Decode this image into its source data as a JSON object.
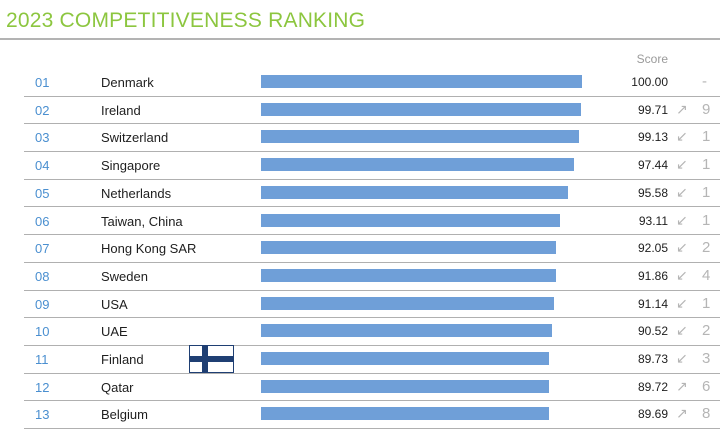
{
  "header": {
    "title": "2023 COMPETITIVENESS RANKING",
    "score_label": "Score"
  },
  "chart_data": {
    "type": "bar",
    "title": "2023 COMPETITIVENESS RANKING",
    "xlabel": "",
    "ylabel": "",
    "value_label": "Score",
    "xlim": [
      0,
      100
    ],
    "grid": false,
    "categories": [
      "Denmark",
      "Ireland",
      "Switzerland",
      "Singapore",
      "Netherlands",
      "Taiwan, China",
      "Hong Kong SAR",
      "Sweden",
      "USA",
      "UAE",
      "Finland",
      "Qatar",
      "Belgium"
    ],
    "values": [
      100.0,
      99.71,
      99.13,
      97.44,
      95.58,
      93.11,
      92.05,
      91.86,
      91.14,
      90.52,
      89.73,
      89.72,
      89.69
    ],
    "rows": [
      {
        "rank": "01",
        "country": "Denmark",
        "value": 100.0,
        "score": "100.00",
        "trend": "",
        "change": "-"
      },
      {
        "rank": "02",
        "country": "Ireland",
        "value": 99.71,
        "score": "99.71",
        "trend": "up",
        "change": "9"
      },
      {
        "rank": "03",
        "country": "Switzerland",
        "value": 99.13,
        "score": "99.13",
        "trend": "down",
        "change": "1"
      },
      {
        "rank": "04",
        "country": "Singapore",
        "value": 97.44,
        "score": "97.44",
        "trend": "down",
        "change": "1"
      },
      {
        "rank": "05",
        "country": "Netherlands",
        "value": 95.58,
        "score": "95.58",
        "trend": "down",
        "change": "1"
      },
      {
        "rank": "06",
        "country": "Taiwan, China",
        "value": 93.11,
        "score": "93.11",
        "trend": "down",
        "change": "1"
      },
      {
        "rank": "07",
        "country": "Hong Kong SAR",
        "value": 92.05,
        "score": "92.05",
        "trend": "down",
        "change": "2"
      },
      {
        "rank": "08",
        "country": "Sweden",
        "value": 91.86,
        "score": "91.86",
        "trend": "down",
        "change": "4"
      },
      {
        "rank": "09",
        "country": "USA",
        "value": 91.14,
        "score": "91.14",
        "trend": "down",
        "change": "1"
      },
      {
        "rank": "10",
        "country": "UAE",
        "value": 90.52,
        "score": "90.52",
        "trend": "down",
        "change": "2"
      },
      {
        "rank": "11",
        "country": "Finland",
        "value": 89.73,
        "score": "89.73",
        "trend": "down",
        "change": "3"
      },
      {
        "rank": "12",
        "country": "Qatar",
        "value": 89.72,
        "score": "89.72",
        "trend": "up",
        "change": "6"
      },
      {
        "rank": "13",
        "country": "Belgium",
        "value": 89.69,
        "score": "89.69",
        "trend": "up",
        "change": "8"
      }
    ],
    "overlay_icon": "finland-flag-icon"
  },
  "colors": {
    "title": "#8cc63f",
    "bar": "#6f9fd8",
    "rank": "#4a8fd0",
    "trend": "#b5b5b5",
    "flag_cross": "#1f3f73"
  }
}
